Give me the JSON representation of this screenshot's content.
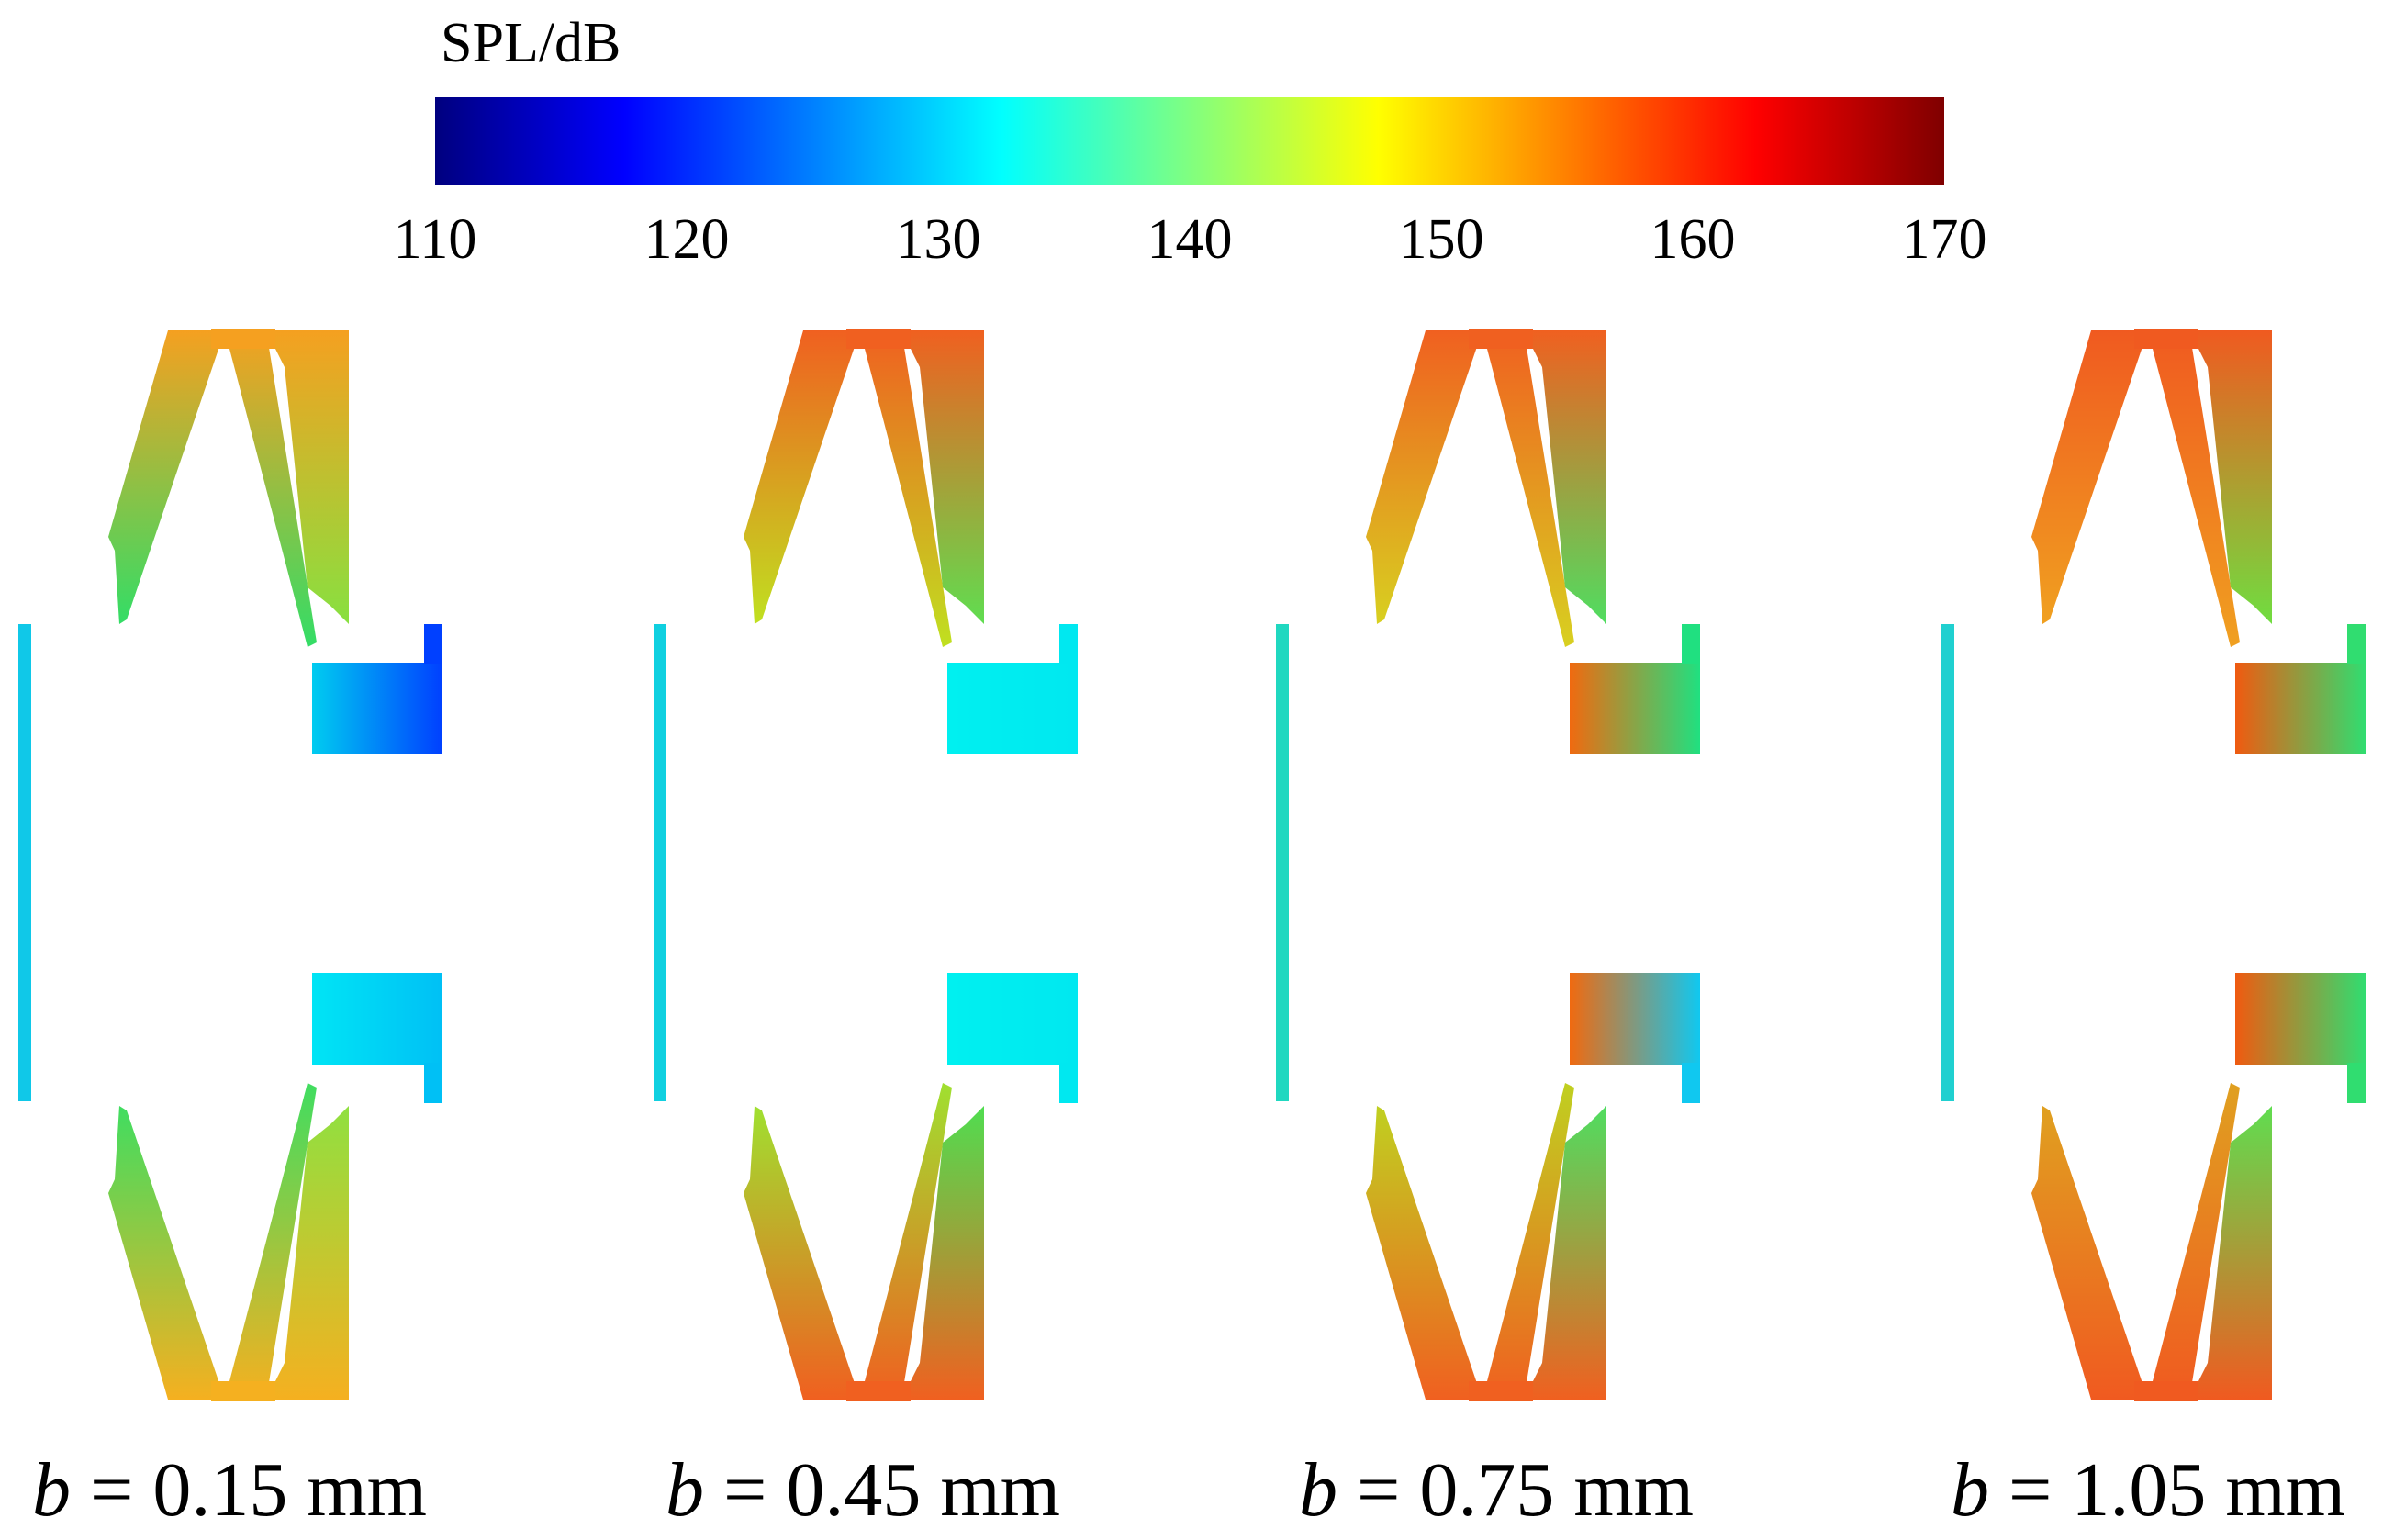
{
  "colorbar": {
    "title": "SPL/dB",
    "ticks": [
      "110",
      "120",
      "130",
      "140",
      "150",
      "160",
      "170"
    ],
    "min": 110,
    "max": 170,
    "colors": [
      "#00007f",
      "#0000ff",
      "#0080ff",
      "#00ffff",
      "#80ff80",
      "#ffff00",
      "#ff8000",
      "#ff0000",
      "#7f0000"
    ]
  },
  "panels": [
    {
      "var": "b",
      "value_text": " = 0.15 mm",
      "top_tip": "#f5a020",
      "top_left": "#33dd66",
      "top_right": "#88e040",
      "bot_tip": "#f5b020",
      "bot_left": "#40dd60",
      "bot_right": "#90e040",
      "top_chamber": [
        "#00ccf0",
        "#0040ff"
      ],
      "bot_chamber": [
        "#00e5f5",
        "#00c0f5"
      ],
      "left_strip": "#10c8e8"
    },
    {
      "var": "b",
      "value_text": " = 0.45 mm",
      "top_tip": "#f06020",
      "top_left": "#c0e020",
      "top_right": "#60dd50",
      "bot_tip": "#f06020",
      "bot_left": "#a0e030",
      "bot_right": "#50dd50",
      "top_chamber": [
        "#00f0f0",
        "#00e8f0"
      ],
      "bot_chamber": [
        "#00f0f0",
        "#00e8f0"
      ],
      "left_strip": "#10d0e0"
    },
    {
      "var": "b",
      "value_text": " = 0.75 mm",
      "top_tip": "#f06020",
      "top_left": "#d8d020",
      "top_right": "#50dd60",
      "bot_tip": "#f06020",
      "bot_left": "#c0d020",
      "bot_right": "#50dd60",
      "top_chamber": [
        "#f06a10",
        "#20e080"
      ],
      "bot_chamber": [
        "#f06a10",
        "#10c8f0"
      ],
      "left_strip": "#20d8c0"
    },
    {
      "var": "b",
      "value_text": " = 1.05 mm",
      "top_tip": "#f05a20",
      "top_left": "#f0a020",
      "top_right": "#70dd40",
      "bot_tip": "#f05a20",
      "bot_left": "#e0a020",
      "bot_right": "#60dd50",
      "top_chamber": [
        "#f05a10",
        "#30dd70"
      ],
      "bot_chamber": [
        "#f05a10",
        "#30dd70"
      ],
      "left_strip": "#20d0d0"
    }
  ]
}
